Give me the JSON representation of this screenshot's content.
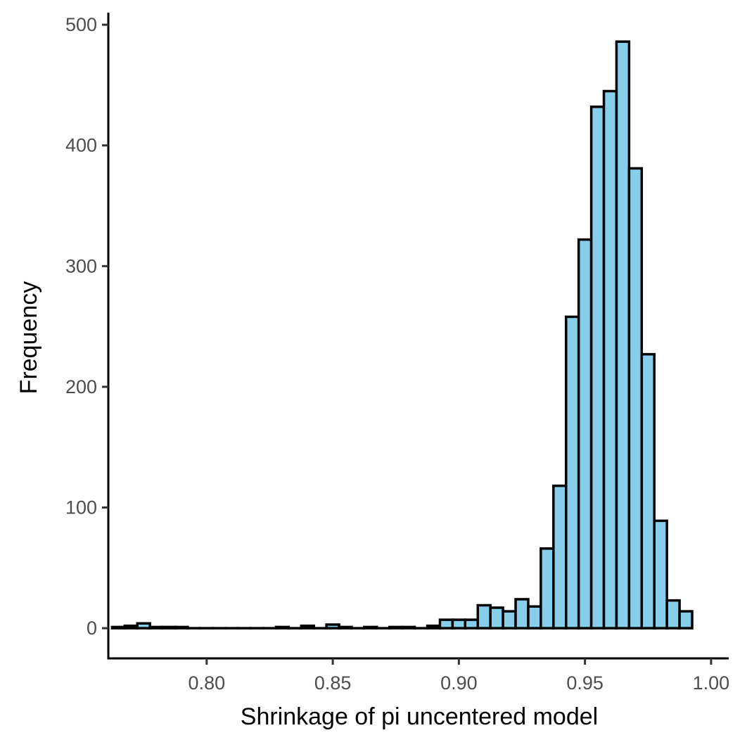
{
  "chart_data": {
    "type": "bar",
    "subtype": "histogram",
    "title": "",
    "xlabel": "Shrinkage of pi uncentered model",
    "ylabel": "Frequency",
    "xlim": [
      0.761,
      1.007
    ],
    "ylim": [
      -25,
      510
    ],
    "x_ticks": [
      0.8,
      0.85,
      0.9,
      0.95,
      1.0
    ],
    "x_tick_labels": [
      "0.80",
      "0.85",
      "0.90",
      "0.95",
      "1.00"
    ],
    "y_ticks": [
      0,
      100,
      200,
      300,
      400,
      500
    ],
    "y_tick_labels": [
      "0",
      "100",
      "200",
      "300",
      "400",
      "500"
    ],
    "grid": false,
    "bin_width": 0.005,
    "bins_start": 0.7625,
    "values": [
      1,
      2,
      4,
      1,
      1,
      1,
      0,
      0,
      0,
      0,
      0,
      0,
      0,
      1,
      0,
      2,
      0,
      3,
      1,
      0,
      1,
      0,
      1,
      1,
      0,
      2,
      7,
      7,
      7,
      19,
      17,
      14,
      24,
      18,
      66,
      118,
      258,
      322,
      432,
      445,
      486,
      381,
      227,
      89,
      23,
      14
    ],
    "colors": {
      "fill": "#87ceeb",
      "stroke": "#000000",
      "axis": "#000000",
      "tick_label": "#4d4d4d"
    }
  }
}
